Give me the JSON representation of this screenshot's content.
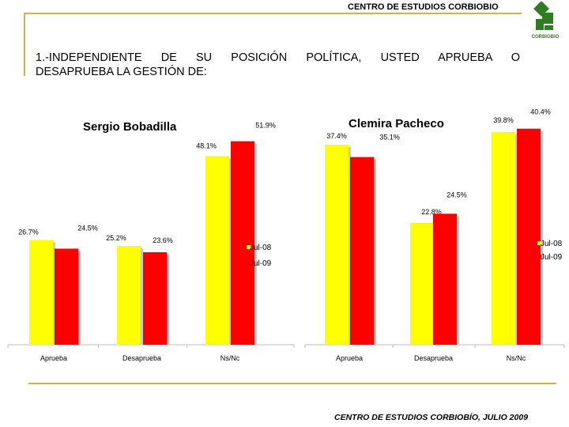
{
  "header": {
    "title": "CENTRO DE ESTUDIOS CORBIOBIO",
    "logo_text": "CORBIOBIO"
  },
  "question": {
    "line1": "1.-INDEPENDIENTE DE SU POSICIÓN POLÍTICA, USTED APRUEBA O",
    "line2": "DESAPRUEBA LA GESTIÓN DE:"
  },
  "colors": {
    "jul08": "#ffff00",
    "jul09": "#ff0000",
    "accent": "#c8b44a",
    "logo_green": "#2e7d1e"
  },
  "chart_data": [
    {
      "type": "bar",
      "title": "Sergio Bobadilla",
      "categories": [
        "Aprueba",
        "Desaprueba",
        "Ns/Nc"
      ],
      "series": [
        {
          "name": "Jul-08",
          "values": [
            26.7,
            25.2,
            48.1
          ],
          "labels": [
            "26.7%",
            "25.2%",
            "48.1%"
          ]
        },
        {
          "name": "Jul-09",
          "values": [
            24.5,
            23.6,
            51.9
          ],
          "labels": [
            "24.5%",
            "23.6%",
            "51.9%"
          ]
        }
      ],
      "ylim": [
        0,
        75
      ],
      "legend": "right"
    },
    {
      "type": "bar",
      "title": "Clemira Pacheco",
      "categories": [
        "Aprueba",
        "Desaprueba",
        "Ns/Nc"
      ],
      "series": [
        {
          "name": "Jul-08",
          "values": [
            37.4,
            22.8,
            39.8
          ],
          "labels": [
            "37.4%",
            "22.8%",
            "39.8%"
          ]
        },
        {
          "name": "Jul-09",
          "values": [
            35.1,
            24.5,
            40.4
          ],
          "labels": [
            "35.1%",
            "24.5%",
            "40.4%"
          ]
        }
      ],
      "ylim": [
        0,
        55
      ],
      "legend": "right"
    }
  ],
  "footer": {
    "text": "CENTRO DE ESTUDIOS CORBIOBÍO, JULIO 2009"
  }
}
